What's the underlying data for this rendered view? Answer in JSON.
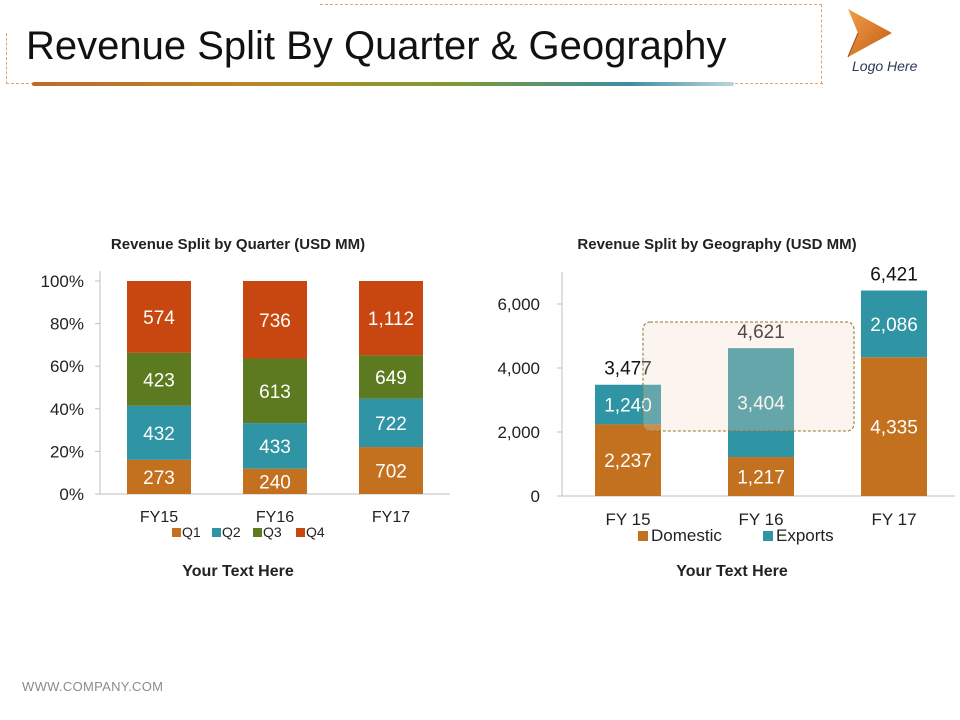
{
  "header": {
    "title": "Revenue Split By Quarter & Geography",
    "logo_text": "Logo Here"
  },
  "footer": {
    "url": "WWW.COMPANY.COM"
  },
  "colors": {
    "Q1": "#c3701f",
    "Q2": "#2f94a3",
    "Q3": "#5c7a1f",
    "Q4": "#c8460f",
    "Domestic": "#c3701f",
    "Exports": "#2f94a3",
    "logo": "#d9761f"
  },
  "chart_data": [
    {
      "type": "bar",
      "stacked": "percent",
      "title": "Revenue Split by Quarter (USD MM)",
      "caption": "Your Text Here",
      "categories": [
        "FY15",
        "FY16",
        "FY17"
      ],
      "y_ticks": [
        "0%",
        "20%",
        "40%",
        "60%",
        "80%",
        "100%"
      ],
      "ylim": [
        0,
        100
      ],
      "series": [
        {
          "name": "Q1",
          "values": [
            273,
            240,
            702
          ]
        },
        {
          "name": "Q2",
          "values": [
            432,
            433,
            722
          ]
        },
        {
          "name": "Q3",
          "values": [
            423,
            613,
            649
          ]
        },
        {
          "name": "Q4",
          "values": [
            574,
            736,
            1112
          ]
        }
      ],
      "value_labels": [
        [
          "273",
          "240",
          "702"
        ],
        [
          "432",
          "433",
          "722"
        ],
        [
          "423",
          "613",
          "649"
        ],
        [
          "574",
          "736",
          "1,112"
        ]
      ],
      "legend": "bottom"
    },
    {
      "type": "bar",
      "stacked": "absolute",
      "title": "Revenue Split by Geography (USD MM)",
      "caption": "Your Text Here",
      "categories": [
        "FY 15",
        "FY 16",
        "FY 17"
      ],
      "y_ticks": [
        "0",
        "2,000",
        "4,000",
        "6,000"
      ],
      "y_tick_values": [
        0,
        2000,
        4000,
        6000
      ],
      "ylim": [
        0,
        7000
      ],
      "series": [
        {
          "name": "Domestic",
          "values": [
            2237,
            1217,
            4335
          ]
        },
        {
          "name": "Exports",
          "values": [
            1240,
            3404,
            2086
          ]
        }
      ],
      "value_labels": [
        [
          "2,237",
          "1,217",
          "4,335"
        ],
        [
          "1,240",
          "3,404",
          "2,086"
        ]
      ],
      "totals": [
        3477,
        4621,
        6421
      ],
      "total_labels": [
        "3,477",
        "4,621",
        "6,421"
      ],
      "legend": "bottom"
    }
  ]
}
